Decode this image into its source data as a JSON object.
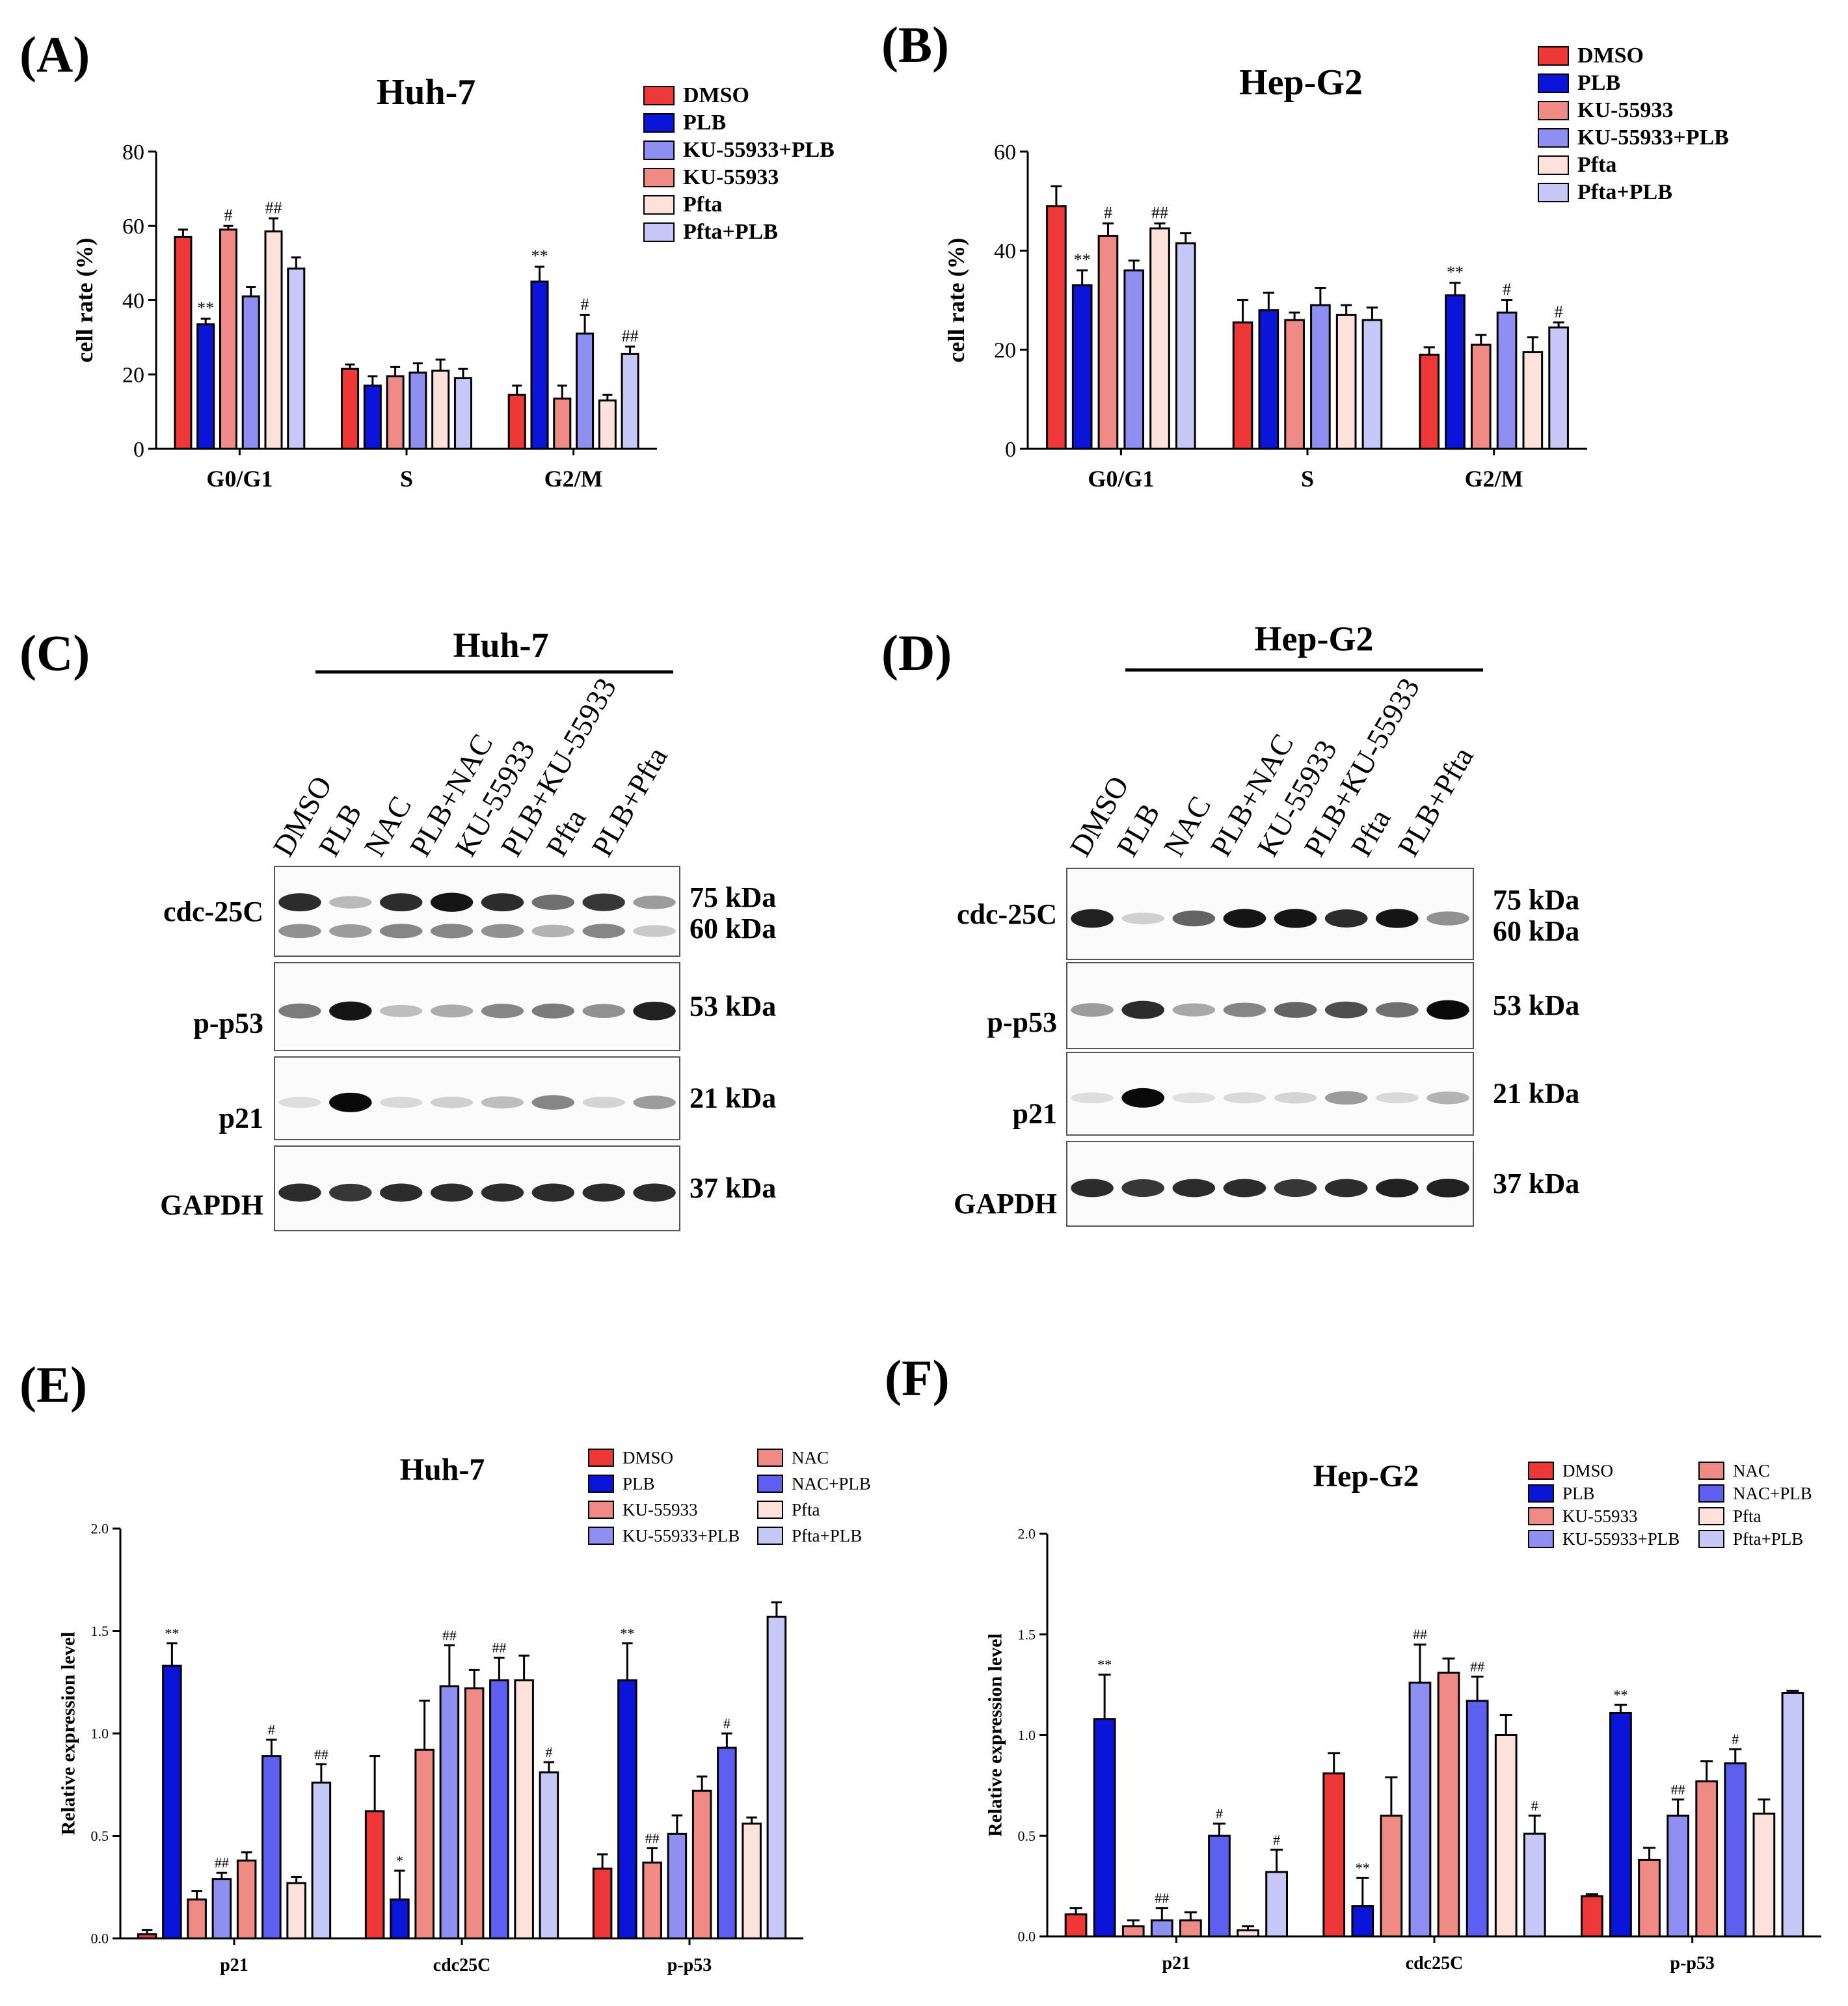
{
  "panel_letters": [
    "(A)",
    "(B)",
    "(C)",
    "(D)",
    "(E)",
    "(F)"
  ],
  "colors": {
    "DMSO": "#ee3838",
    "PLB": "#0b14d9",
    "KU-55933": "#f08a85",
    "KU-55933+PLB": "#8e8ff0",
    "Pfta": "#fde2dc",
    "Pfta+PLB": "#c6c8f7",
    "NAC": "#f08a85",
    "NAC+PLB": "#5d5ff0"
  },
  "chart_data": [
    {
      "panel": "(A)",
      "type": "bar",
      "title": "Huh-7",
      "xlabel": "",
      "ylabel": "cell rate (%)",
      "ylim": [
        0,
        80
      ],
      "yticks": [
        "0",
        "20",
        "40",
        "60",
        "80"
      ],
      "categories": [
        "G0/G1",
        "S",
        "G2/M"
      ],
      "legend_entries": [
        "DMSO",
        "PLB",
        "KU-55933+PLB",
        "KU-55933",
        "Pfta",
        "Pfta+PLB"
      ],
      "series": [
        {
          "name": "DMSO",
          "values": [
            57,
            21.5,
            14.5
          ],
          "errors": [
            2,
            1.2,
            2.5
          ],
          "marks": [
            "",
            "",
            ""
          ]
        },
        {
          "name": "PLB",
          "values": [
            33.5,
            17,
            45
          ],
          "errors": [
            1.5,
            2.5,
            4
          ],
          "marks": [
            "**",
            "",
            "**"
          ]
        },
        {
          "name": "KU-55933",
          "values": [
            59,
            19.5,
            13.5
          ],
          "errors": [
            1,
            2.5,
            3.5
          ],
          "marks": [
            "#",
            "",
            ""
          ]
        },
        {
          "name": "KU-55933+PLB",
          "values": [
            41,
            20.5,
            31
          ],
          "errors": [
            2.5,
            2.5,
            5
          ],
          "marks": [
            "",
            "",
            "#"
          ]
        },
        {
          "name": "Pfta",
          "values": [
            58.5,
            21,
            13
          ],
          "errors": [
            3.5,
            3,
            1.5
          ],
          "marks": [
            "##",
            "",
            ""
          ]
        },
        {
          "name": "Pfta+PLB",
          "values": [
            48.5,
            19,
            25.5
          ],
          "errors": [
            3,
            2.5,
            2
          ],
          "marks": [
            "",
            "",
            "##"
          ]
        }
      ]
    },
    {
      "panel": "(B)",
      "type": "bar",
      "title": "Hep-G2",
      "xlabel": "",
      "ylabel": "cell rate (%)",
      "ylim": [
        0,
        60
      ],
      "yticks": [
        "0",
        "20",
        "40",
        "60"
      ],
      "categories": [
        "G0/G1",
        "S",
        "G2/M"
      ],
      "legend_entries": [
        "DMSO",
        "PLB",
        "KU-55933",
        "KU-55933+PLB",
        "Pfta",
        "Pfta+PLB"
      ],
      "series": [
        {
          "name": "DMSO",
          "values": [
            49,
            25.5,
            19
          ],
          "errors": [
            4,
            4.5,
            1.5
          ],
          "marks": [
            "",
            "",
            ""
          ]
        },
        {
          "name": "PLB",
          "values": [
            33,
            28,
            31
          ],
          "errors": [
            3,
            3.5,
            2.5
          ],
          "marks": [
            "**",
            "",
            "**"
          ]
        },
        {
          "name": "KU-55933",
          "values": [
            43,
            26,
            21
          ],
          "errors": [
            2.5,
            1.5,
            2
          ],
          "marks": [
            "#",
            "",
            ""
          ]
        },
        {
          "name": "KU-55933+PLB",
          "values": [
            36,
            29,
            27.5
          ],
          "errors": [
            2,
            3.5,
            2.5
          ],
          "marks": [
            "",
            "",
            "#"
          ]
        },
        {
          "name": "Pfta",
          "values": [
            44.5,
            27,
            19.5
          ],
          "errors": [
            1,
            2,
            3
          ],
          "marks": [
            "##",
            "",
            ""
          ]
        },
        {
          "name": "Pfta+PLB",
          "values": [
            41.5,
            26,
            24.5
          ],
          "errors": [
            2,
            2.5,
            1
          ],
          "marks": [
            "",
            "",
            "#"
          ]
        }
      ]
    },
    {
      "panel": "(E)",
      "type": "bar",
      "title": "Huh-7",
      "xlabel": "",
      "ylabel": "Relative expression level",
      "ylim": [
        0,
        2
      ],
      "yticks": [
        "0.0",
        "0.5",
        "1.0",
        "1.5",
        "2.0"
      ],
      "categories": [
        "p21",
        "cdc25C",
        "p-p53"
      ],
      "legend_entries": [
        "DMSO",
        "PLB",
        "KU-55933",
        "KU-55933+PLB",
        "NAC",
        "NAC+PLB",
        "Pfta",
        "Pfta+PLB"
      ],
      "series": [
        {
          "name": "DMSO",
          "values": [
            0.02,
            0.62,
            0.34
          ],
          "errors": [
            0.02,
            0.27,
            0.07
          ],
          "marks": [
            "",
            "",
            ""
          ]
        },
        {
          "name": "PLB",
          "values": [
            1.33,
            0.19,
            1.26
          ],
          "errors": [
            0.11,
            0.14,
            0.18
          ],
          "marks": [
            "**",
            "*",
            "**"
          ]
        },
        {
          "name": "KU-55933",
          "values": [
            0.19,
            0.92,
            0.37
          ],
          "errors": [
            0.04,
            0.24,
            0.07
          ],
          "marks": [
            "",
            "",
            "##"
          ]
        },
        {
          "name": "KU-55933+PLB",
          "values": [
            0.29,
            1.23,
            0.51
          ],
          "errors": [
            0.03,
            0.2,
            0.09
          ],
          "marks": [
            "##",
            "##",
            ""
          ]
        },
        {
          "name": "NAC",
          "values": [
            0.38,
            1.22,
            0.72
          ],
          "errors": [
            0.04,
            0.09,
            0.07
          ],
          "marks": [
            "",
            "",
            ""
          ]
        },
        {
          "name": "NAC+PLB",
          "values": [
            0.89,
            1.26,
            0.93
          ],
          "errors": [
            0.08,
            0.11,
            0.07
          ],
          "marks": [
            "#",
            "##",
            "#"
          ]
        },
        {
          "name": "Pfta",
          "values": [
            0.27,
            1.26,
            0.56
          ],
          "errors": [
            0.03,
            0.12,
            0.03
          ],
          "marks": [
            "",
            "",
            ""
          ]
        },
        {
          "name": "Pfta+PLB",
          "values": [
            0.76,
            0.81,
            1.57
          ],
          "errors": [
            0.09,
            0.05,
            0.07
          ],
          "marks": [
            "##",
            "#",
            ""
          ]
        }
      ]
    },
    {
      "panel": "(F)",
      "type": "bar",
      "title": "Hep-G2",
      "xlabel": "",
      "ylabel": "Relative expression level",
      "ylim": [
        0,
        2
      ],
      "yticks": [
        "0.0",
        "0.5",
        "1.0",
        "1.5",
        "2.0"
      ],
      "categories": [
        "p21",
        "cdc25C",
        "p-p53"
      ],
      "legend_entries": [
        "DMSO",
        "PLB",
        "KU-55933",
        "KU-55933+PLB",
        "NAC",
        "NAC+PLB",
        "Pfta",
        "Pfta+PLB"
      ],
      "series": [
        {
          "name": "DMSO",
          "values": [
            0.11,
            0.81,
            0.2
          ],
          "errors": [
            0.03,
            0.1,
            0.01
          ],
          "marks": [
            "",
            "",
            ""
          ]
        },
        {
          "name": "PLB",
          "values": [
            1.08,
            0.15,
            1.11
          ],
          "errors": [
            0.22,
            0.14,
            0.04
          ],
          "marks": [
            "**",
            "**",
            "**"
          ]
        },
        {
          "name": "KU-55933",
          "values": [
            0.05,
            0.6,
            0.38
          ],
          "errors": [
            0.03,
            0.19,
            0.06
          ],
          "marks": [
            "",
            "",
            ""
          ]
        },
        {
          "name": "KU-55933+PLB",
          "values": [
            0.08,
            1.26,
            0.6
          ],
          "errors": [
            0.06,
            0.19,
            0.08
          ],
          "marks": [
            "##",
            "##",
            "##"
          ]
        },
        {
          "name": "NAC",
          "values": [
            0.08,
            1.31,
            0.77
          ],
          "errors": [
            0.04,
            0.07,
            0.1
          ],
          "marks": [
            "",
            "",
            ""
          ]
        },
        {
          "name": "NAC+PLB",
          "values": [
            0.5,
            1.17,
            0.86
          ],
          "errors": [
            0.06,
            0.12,
            0.07
          ],
          "marks": [
            "#",
            "##",
            "#"
          ]
        },
        {
          "name": "Pfta",
          "values": [
            0.03,
            1.0,
            0.61
          ],
          "errors": [
            0.02,
            0.1,
            0.07
          ],
          "marks": [
            "",
            "",
            ""
          ]
        },
        {
          "name": "Pfta+PLB",
          "values": [
            0.32,
            0.51,
            1.21
          ],
          "errors": [
            0.11,
            0.09,
            0.01
          ],
          "marks": [
            "#",
            "#",
            ""
          ]
        }
      ]
    }
  ],
  "blots": [
    {
      "panel": "(C)",
      "title": "Huh-7",
      "lanes": [
        "DMSO",
        "PLB",
        "NAC",
        "PLB+NAC",
        "KU-55933",
        "PLB+KU-55933",
        "Pfta",
        "PLB+Pfta"
      ],
      "rows": [
        {
          "label": "cdc-25C",
          "sizes": [
            "75  kDa",
            "60  kDa"
          ],
          "bands": [
            [
              0.85,
              0.22,
              0.85,
              0.95,
              0.85,
              0.55,
              0.8,
              0.35
            ],
            [
              0.4,
              0.35,
              0.45,
              0.45,
              0.4,
              0.25,
              0.45,
              0.15
            ]
          ]
        },
        {
          "label": "p-p53",
          "sizes": [
            "53  kDa"
          ],
          "bands": [
            [
              0.5,
              0.95,
              0.2,
              0.28,
              0.45,
              0.5,
              0.4,
              0.9
            ]
          ]
        },
        {
          "label": "p21",
          "sizes": [
            "21  kDa"
          ],
          "bands": [
            [
              0.06,
              1.0,
              0.08,
              0.12,
              0.2,
              0.45,
              0.1,
              0.35
            ]
          ]
        },
        {
          "label": "GAPDH",
          "sizes": [
            "37  kDa"
          ],
          "bands": [
            [
              0.85,
              0.8,
              0.85,
              0.85,
              0.85,
              0.85,
              0.85,
              0.85
            ]
          ]
        }
      ]
    },
    {
      "panel": "(D)",
      "title": "Hep-G2",
      "lanes": [
        "DMSO",
        "PLB",
        "NAC",
        "PLB+NAC",
        "KU-55933",
        "PLB+KU-55933",
        "Pfta",
        "PLB+Pfta"
      ],
      "rows": [
        {
          "label": "cdc-25C",
          "sizes": [
            "75  kDa",
            "60  kDa"
          ],
          "bands": [
            [
              0.9,
              0.12,
              0.6,
              0.95,
              0.95,
              0.85,
              0.95,
              0.4
            ]
          ]
        },
        {
          "label": "p-p53",
          "sizes": [
            "53  kDa"
          ],
          "bands": [
            [
              0.35,
              0.85,
              0.3,
              0.45,
              0.6,
              0.7,
              0.55,
              1.0
            ]
          ]
        },
        {
          "label": "p21",
          "sizes": [
            "21  kDa"
          ],
          "bands": [
            [
              0.06,
              1.0,
              0.05,
              0.08,
              0.1,
              0.35,
              0.08,
              0.25
            ]
          ]
        },
        {
          "label": "GAPDH",
          "sizes": [
            "37  kDa"
          ],
          "bands": [
            [
              0.85,
              0.8,
              0.85,
              0.85,
              0.8,
              0.85,
              0.9,
              0.9
            ]
          ]
        }
      ]
    }
  ]
}
